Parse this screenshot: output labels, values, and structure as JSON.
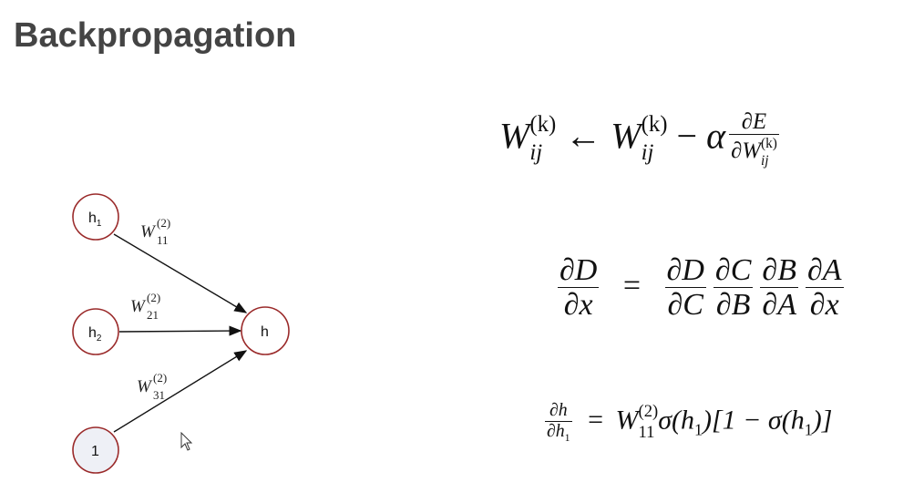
{
  "slide": {
    "title": "Backpropagation"
  },
  "diagram": {
    "nodes": [
      {
        "id": "h1",
        "base": "h",
        "sub": "1"
      },
      {
        "id": "h2",
        "base": "h",
        "sub": "2"
      },
      {
        "id": "bias",
        "base": "1",
        "sub": ""
      },
      {
        "id": "h",
        "base": "h",
        "sub": ""
      }
    ],
    "edge_labels": [
      {
        "base": "W",
        "sup": "(2)",
        "sub": "11"
      },
      {
        "base": "W",
        "sup": "(2)",
        "sub": "21"
      },
      {
        "base": "W",
        "sup": "(2)",
        "sub": "31"
      }
    ],
    "colors": {
      "node_stroke": "#9a2a2a",
      "bias_fill": "#eef0f6",
      "edge": "#111111"
    }
  },
  "equations": {
    "update_rule": {
      "lhs_base": "W",
      "lhs_sup": "(k)",
      "lhs_sub": "ij",
      "arrow": "←",
      "rhs_base": "W",
      "rhs_sup": "(k)",
      "rhs_sub": "ij",
      "minus": "−",
      "alpha": "α",
      "frac_num": "∂E",
      "frac_den_prefix": "∂W",
      "frac_den_sup": "(k)",
      "frac_den_sub": "ij"
    },
    "chain_rule": {
      "lhs_num": "∂D",
      "lhs_den": "∂x",
      "equals": "=",
      "factors": [
        {
          "num": "∂D",
          "den": "∂C"
        },
        {
          "num": "∂C",
          "den": "∂B"
        },
        {
          "num": "∂B",
          "den": "∂A"
        },
        {
          "num": "∂A",
          "den": "∂x"
        }
      ]
    },
    "derivative": {
      "num": "∂h",
      "den_prefix": "∂h",
      "den_sub": "1",
      "equals": "=",
      "w_base": "W",
      "w_sup": "(2)",
      "w_sub": "11",
      "tail_1": "σ(h",
      "tail_1_sub": "1",
      "tail_2": ")[1 − σ(h",
      "tail_2_sub": "1",
      "tail_3": ")]"
    }
  }
}
